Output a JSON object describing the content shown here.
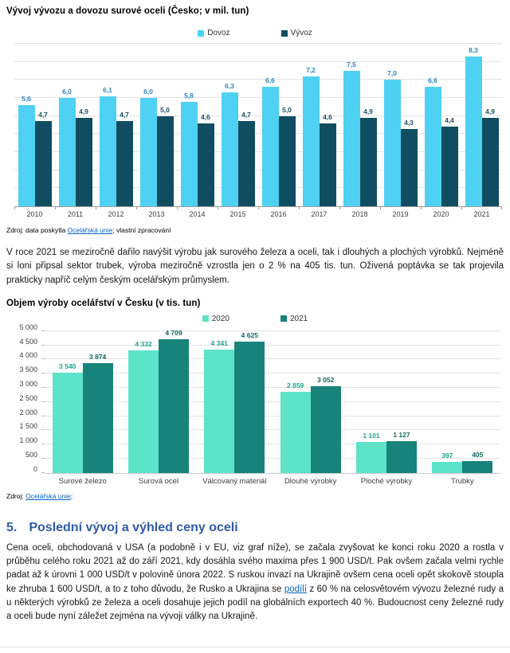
{
  "chart_data": [
    {
      "type": "bar",
      "title": "Vývoj vývozu a dovozu surové oceli (Česko; v mil. tun)",
      "categories": [
        "2010",
        "2011",
        "2012",
        "2013",
        "2014",
        "2015",
        "2016",
        "2017",
        "2018",
        "2019",
        "2020",
        "2021"
      ],
      "series": [
        {
          "name": "Dovoz",
          "color": "#4ed1f2",
          "label_color": "#2e86c1",
          "values": [
            5.6,
            6.0,
            6.1,
            6.0,
            5.8,
            6.3,
            6.6,
            7.2,
            7.5,
            7.0,
            6.6,
            8.3
          ],
          "labels": [
            "5,6",
            "6,0",
            "6,1",
            "6,0",
            "5,8",
            "6,3",
            "6,6",
            "7,2",
            "7,5",
            "7,0",
            "6,6",
            "8,3"
          ]
        },
        {
          "name": "Vývoz",
          "color": "#114d61",
          "label_color": "#1b4f63",
          "values": [
            4.7,
            4.9,
            4.7,
            5.0,
            4.6,
            4.7,
            5.0,
            4.6,
            4.9,
            4.3,
            4.4,
            4.9
          ],
          "labels": [
            "4,7",
            "4,9",
            "4,7",
            "5,0",
            "4,6",
            "4,7",
            "5,0",
            "4,6",
            "4,9",
            "4,3",
            "4,4",
            "4,9"
          ]
        }
      ],
      "ylim": [
        0,
        9
      ],
      "grid_step": 1,
      "grid": true,
      "legend_position": "top",
      "xlabel": "",
      "ylabel": "",
      "y_ticks": []
    },
    {
      "type": "bar",
      "title": "Objem výroby ocelářství v Česku (v tis. tun)",
      "categories": [
        "Surové železo",
        "Surová ocel",
        "Válcovaný materiál",
        "Dlouhé výrobky",
        "Ploché výrobky",
        "Trubky"
      ],
      "series": [
        {
          "name": "2020",
          "color": "#5de3c8",
          "label_color": "#1aa38d",
          "values": [
            3540,
            4332,
            4341,
            2859,
            1101,
            397
          ],
          "labels": [
            "3 540",
            "4 332",
            "4 341",
            "2 859",
            "1 101",
            "397"
          ]
        },
        {
          "name": "2021",
          "color": "#17837a",
          "label_color": "#10685c",
          "values": [
            3874,
            4709,
            4625,
            3052,
            1127,
            405
          ],
          "labels": [
            "3 874",
            "4 709",
            "4 625",
            "3 052",
            "1 127",
            "405"
          ]
        }
      ],
      "ylim": [
        0,
        5000
      ],
      "grid_step": 500,
      "grid": true,
      "legend_position": "top",
      "xlabel": "",
      "ylabel": "",
      "y_ticks": [
        "5 000",
        "4 500",
        "4 000",
        "3 500",
        "3 000",
        "2 500",
        "2 000",
        "1 500",
        "1 000",
        "500",
        "0"
      ]
    }
  ],
  "source1": {
    "prefix": "Zdroj: data poskytla ",
    "link": "Ocelářská unie",
    "suffix": "; vlastní zpracování"
  },
  "paragraph1": "V roce 2021 se meziročně dařilo navýšit výrobu jak surového železa a oceli, tak i dlouhých a plochých výrobků. Nejméně si loni připsal sektor trubek, výroba meziročně vzrostla jen o 2 % na 405 tis. tun. Oživená poptávka se tak projevila prakticky napříč celým českým ocelářským průmyslem.",
  "source2": {
    "prefix": "Zdroj: ",
    "link": "Ocelářská unie",
    "suffix": ";"
  },
  "heading": {
    "number": "5.",
    "text": "Poslední vývoj a výhled ceny oceli"
  },
  "paragraph2": {
    "part1": "Cena oceli, obchodovaná v USA (a podobně i v EU, viz graf níže), se začala zvyšovat ke konci roku 2020 a rostla v průběhu celého roku 2021 až do září 2021, kdy dosáhla svého maxima přes 1 900 USD/t. Pak ovšem začala velmi rychle padat až k úrovni 1 000 USD/t v polovině února 2022. S ruskou invazí na Ukrajině ovšem cena oceli opět skokově stoupla ke zhruba 1 600 USD/t, a to z toho důvodu, že Rusko a Ukrajina se ",
    "link": "podílí",
    "part2": " z 60 % na celosvětovém vývozu železné rudy a u některých výrobků ze železa a oceli dosahuje jejich podíl na globálních exportech 40 %. Budoucnost ceny železné rudy a oceli bude nyní záležet zejména na vývoji války na Ukrajině."
  }
}
